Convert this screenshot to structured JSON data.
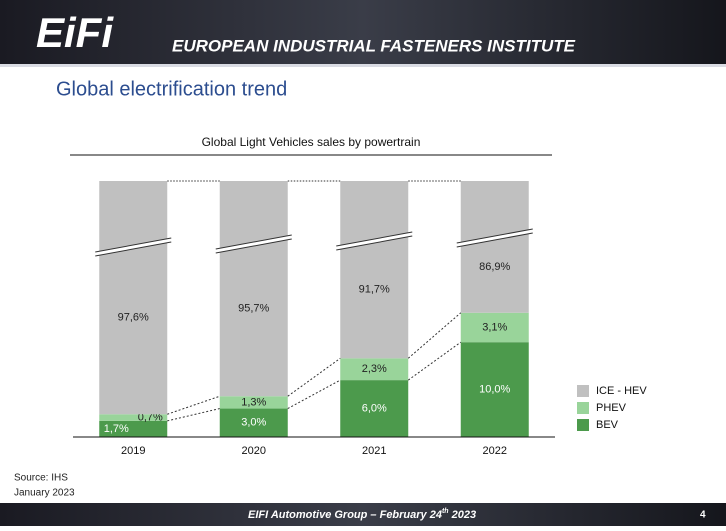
{
  "header": {
    "logo": "EiFi",
    "organization": "EUROPEAN INDUSTRIAL FASTENERS INSTITUTE"
  },
  "slide_title": "Global electrification trend",
  "chart_data": {
    "type": "stacked_bar",
    "title": "Global Light Vehicles sales by powertrain",
    "categories": [
      "2019",
      "2020",
      "2021",
      "2022"
    ],
    "series": [
      {
        "name": "ICE - HEV",
        "color": "#c0c0c0",
        "values": [
          97.6,
          95.7,
          91.7,
          86.9
        ],
        "value_labels": [
          "97,6%",
          "95,7%",
          "91,7%",
          "86,9%"
        ]
      },
      {
        "name": "PHEV",
        "color": "#99d49a",
        "values": [
          0.7,
          1.3,
          2.3,
          3.1
        ],
        "value_labels": [
          "0,7%",
          "1,3%",
          "2,3%",
          "3,1%"
        ]
      },
      {
        "name": "BEV",
        "color": "#4c9a4c",
        "values": [
          1.7,
          3.0,
          6.0,
          10.0
        ],
        "value_labels": [
          "1,7%",
          "3,0%",
          "6,0%",
          "10,0%"
        ]
      }
    ],
    "ylim": [
      0,
      27
    ],
    "axis_break": true,
    "legend": "right"
  },
  "source": [
    "Source: IHS",
    "January 2023"
  ],
  "footer": {
    "text": "EIFI Automotive Group – February 24",
    "superscript": "th",
    "text_end": " 2023",
    "page": "4"
  }
}
